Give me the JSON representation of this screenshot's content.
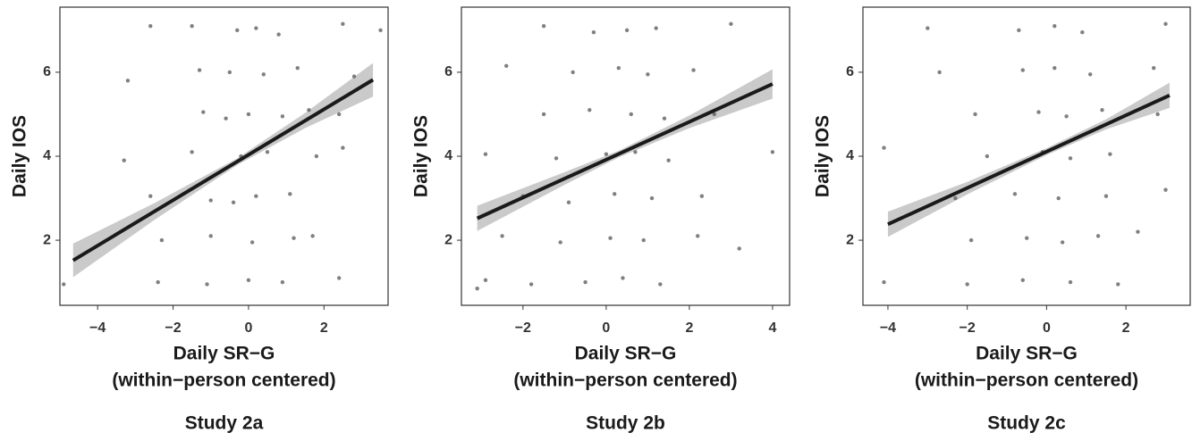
{
  "chart_data": [
    {
      "type": "scatter",
      "title": "Study 2a",
      "ylabel": "Daily IOS",
      "xlabel": [
        "Daily SR−G",
        "(within−person centered)"
      ],
      "xlim": [
        -5.0,
        3.7
      ],
      "ylim": [
        0.45,
        7.55
      ],
      "xticks": [
        {
          "value": -4,
          "label": "−4"
        },
        {
          "value": -2,
          "label": "−2"
        },
        0,
        2
      ],
      "yticks": [
        2,
        4,
        6
      ],
      "points": {
        "color": "#555555",
        "x": [
          -0.3,
          0.2,
          0.8,
          -1.5,
          2.5,
          -2.6,
          3.5,
          -0.5,
          0.4,
          1.3,
          -1.3,
          -3.2,
          2.8,
          -1.2,
          0.0,
          0.9,
          1.6,
          -0.6,
          2.4,
          -3.3,
          -1.5,
          -0.2,
          0.5,
          1.8,
          2.5,
          -2.6,
          -1.0,
          0.2,
          1.1,
          -0.4,
          -2.3,
          -1.0,
          0.1,
          1.2,
          1.7,
          -2.4,
          -1.1,
          0.0,
          0.9,
          2.4,
          -4.9
        ],
        "y": [
          7.0,
          7.05,
          6.9,
          7.1,
          7.15,
          7.1,
          7.0,
          6.0,
          5.95,
          6.1,
          6.05,
          5.8,
          5.9,
          5.05,
          5.0,
          4.95,
          5.1,
          4.9,
          5.0,
          3.9,
          4.1,
          4.0,
          4.1,
          4.0,
          4.2,
          3.05,
          2.95,
          3.05,
          3.1,
          2.9,
          2.0,
          2.1,
          1.95,
          2.05,
          2.1,
          1.0,
          0.95,
          1.05,
          1.0,
          1.1,
          0.95
        ]
      },
      "fit": {
        "color": "#1a1a1a",
        "x": [
          -4.65,
          3.3
        ],
        "y": [
          1.52,
          5.82
        ]
      },
      "band": {
        "color": "#bdbdbd",
        "x": [
          -4.65,
          -2.5,
          -0.3,
          1.5,
          3.3
        ],
        "lower": [
          1.12,
          2.48,
          3.79,
          4.67,
          5.42
        ],
        "upper": [
          1.92,
          2.88,
          3.95,
          5.03,
          6.22
        ]
      }
    },
    {
      "type": "scatter",
      "title": "Study 2b",
      "ylabel": "Daily IOS",
      "xlabel": [
        "Daily SR−G",
        "(within−person centered)"
      ],
      "xlim": [
        -3.48,
        4.41
      ],
      "ylim": [
        0.45,
        7.55
      ],
      "xticks": [
        {
          "value": -2,
          "label": "−2"
        },
        0,
        2,
        4
      ],
      "yticks": [
        2,
        4,
        6
      ],
      "points": {
        "color": "#555555",
        "x": [
          -1.5,
          -0.3,
          0.5,
          1.2,
          3.0,
          -2.4,
          -0.8,
          0.3,
          1.0,
          2.1,
          -1.5,
          -0.4,
          0.6,
          1.4,
          2.6,
          -2.9,
          -1.2,
          0.0,
          0.7,
          1.5,
          4.0,
          -2.0,
          -0.9,
          0.2,
          1.1,
          2.3,
          -2.5,
          -1.1,
          0.1,
          0.9,
          2.2,
          3.2,
          -2.9,
          -1.8,
          -0.5,
          0.4,
          1.3,
          -3.1
        ],
        "y": [
          7.1,
          6.95,
          7.0,
          7.05,
          7.15,
          6.15,
          6.0,
          6.1,
          5.95,
          6.05,
          5.0,
          5.1,
          5.0,
          4.9,
          5.0,
          4.05,
          3.95,
          4.05,
          4.1,
          3.9,
          4.1,
          3.05,
          2.9,
          3.1,
          3.0,
          3.05,
          2.1,
          1.95,
          2.05,
          2.0,
          2.1,
          1.8,
          1.05,
          0.95,
          1.0,
          1.1,
          0.95,
          0.85
        ]
      },
      "fit": {
        "color": "#1a1a1a",
        "x": [
          -3.1,
          4.0
        ],
        "y": [
          2.52,
          5.72
        ]
      },
      "band": {
        "color": "#bdbdbd",
        "x": [
          -3.1,
          -1,
          0.3,
          2,
          4
        ],
        "lower": [
          2.22,
          3.32,
          3.97,
          4.67,
          5.37
        ],
        "upper": [
          2.82,
          3.62,
          4.13,
          4.97,
          6.07
        ]
      }
    },
    {
      "type": "scatter",
      "title": "Study 2c",
      "ylabel": "Daily IOS",
      "xlabel": [
        "Daily SR−G",
        "(within−person centered)"
      ],
      "xlim": [
        -4.63,
        3.62
      ],
      "ylim": [
        0.45,
        7.55
      ],
      "xticks": [
        {
          "value": -4,
          "label": "−4"
        },
        {
          "value": -2,
          "label": "−2"
        },
        0,
        2
      ],
      "yticks": [
        2,
        4,
        6
      ],
      "points": {
        "color": "#555555",
        "x": [
          -3.0,
          -0.7,
          0.2,
          0.9,
          3.0,
          -2.7,
          -0.6,
          0.2,
          1.1,
          2.7,
          -1.8,
          -0.2,
          0.5,
          1.4,
          2.8,
          -4.1,
          -1.5,
          -0.1,
          0.6,
          1.6,
          -2.3,
          -0.8,
          0.3,
          1.5,
          3.0,
          -1.9,
          -0.5,
          0.4,
          1.3,
          2.3,
          -4.1,
          -2.0,
          -0.6,
          0.6,
          1.8
        ],
        "y": [
          7.05,
          7.0,
          7.1,
          6.95,
          7.15,
          6.0,
          6.05,
          6.1,
          5.95,
          6.1,
          5.0,
          5.05,
          4.95,
          5.1,
          5.0,
          4.2,
          4.0,
          4.1,
          3.95,
          4.05,
          3.0,
          3.1,
          3.0,
          3.05,
          3.2,
          2.0,
          2.05,
          1.95,
          2.1,
          2.2,
          1.0,
          0.95,
          1.05,
          1.0,
          0.95
        ]
      },
      "fit": {
        "color": "#1a1a1a",
        "x": [
          -4.0,
          3.1
        ],
        "y": [
          2.38,
          5.45
        ]
      },
      "band": {
        "color": "#bdbdbd",
        "x": [
          -4,
          -2,
          0,
          1.5,
          3.1
        ],
        "lower": [
          2.08,
          3.09,
          4.03,
          4.64,
          5.15
        ],
        "upper": [
          2.68,
          3.39,
          4.19,
          4.88,
          5.75
        ]
      }
    }
  ]
}
